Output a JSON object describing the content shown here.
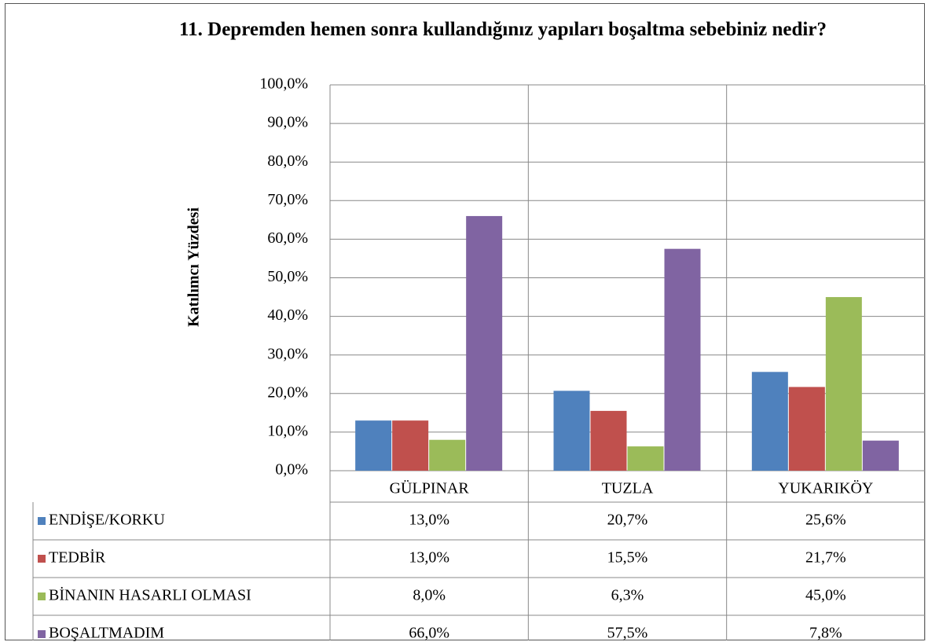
{
  "chart_data": {
    "type": "bar",
    "title": "11. Depremden hemen sonra kullandığınız yapıları boşaltma sebebiniz nedir?",
    "y_label": "Katılımcı Yüzdesi",
    "categories": [
      "GÜLPINAR",
      "TUZLA",
      "YUKARIKÖY"
    ],
    "series": [
      {
        "name": "ENDİŞE/KORKU",
        "color": "#4f81bd",
        "values": [
          13.0,
          20.7,
          25.6
        ],
        "value_labels": [
          "13,0%",
          "20,7%",
          "25,6%"
        ]
      },
      {
        "name": "TEDBİR",
        "color": "#c0504d",
        "values": [
          13.0,
          15.5,
          21.7
        ],
        "value_labels": [
          "13,0%",
          "15,5%",
          "21,7%"
        ]
      },
      {
        "name": "BİNANIN HASARLI OLMASI",
        "color": "#9bbb59",
        "values": [
          8.0,
          6.3,
          45.0
        ],
        "value_labels": [
          "8,0%",
          "6,3%",
          "45,0%"
        ]
      },
      {
        "name": "BOŞALTMADIM",
        "color": "#8064a2",
        "values": [
          66.0,
          57.5,
          7.8
        ],
        "value_labels": [
          "66,0%",
          "57,5%",
          "7,8%"
        ]
      }
    ],
    "ylim": [
      0,
      100
    ],
    "yticks": [
      {
        "value": 0,
        "label": "0,0%"
      },
      {
        "value": 10,
        "label": "10,0%"
      },
      {
        "value": 20,
        "label": "20,0%"
      },
      {
        "value": 30,
        "label": "30,0%"
      },
      {
        "value": 40,
        "label": "40,0%"
      },
      {
        "value": 50,
        "label": "50,0%"
      },
      {
        "value": 60,
        "label": "60,0%"
      },
      {
        "value": 70,
        "label": "70,0%"
      },
      {
        "value": 80,
        "label": "80,0%"
      },
      {
        "value": 90,
        "label": "90,0%"
      },
      {
        "value": 100,
        "label": "100,0%"
      }
    ],
    "grid": true
  }
}
